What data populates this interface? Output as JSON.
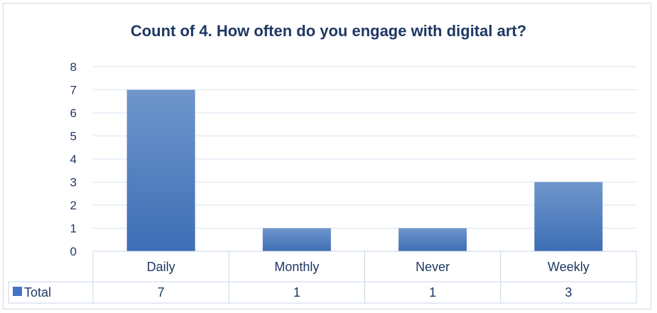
{
  "chart_data": {
    "type": "bar",
    "title": "Count of  4. How often do you engage with digital art?",
    "categories": [
      "Daily",
      "Monthly",
      "Never",
      "Weekly"
    ],
    "series": [
      {
        "name": "Total",
        "values": [
          7,
          1,
          1,
          3
        ]
      }
    ],
    "ylim": [
      0,
      8
    ],
    "yticks": [
      0,
      1,
      2,
      3,
      4,
      5,
      6,
      7,
      8
    ],
    "grid": true,
    "legend": "data-table-left",
    "data_table": true,
    "colors": {
      "bar_top": "#6f96cc",
      "bar_bottom": "#3d6eb5",
      "legend_key": "#4472c4",
      "text": "#1f3864",
      "grid": "#d9e3f1",
      "table_border": "#c9d5e8"
    }
  }
}
